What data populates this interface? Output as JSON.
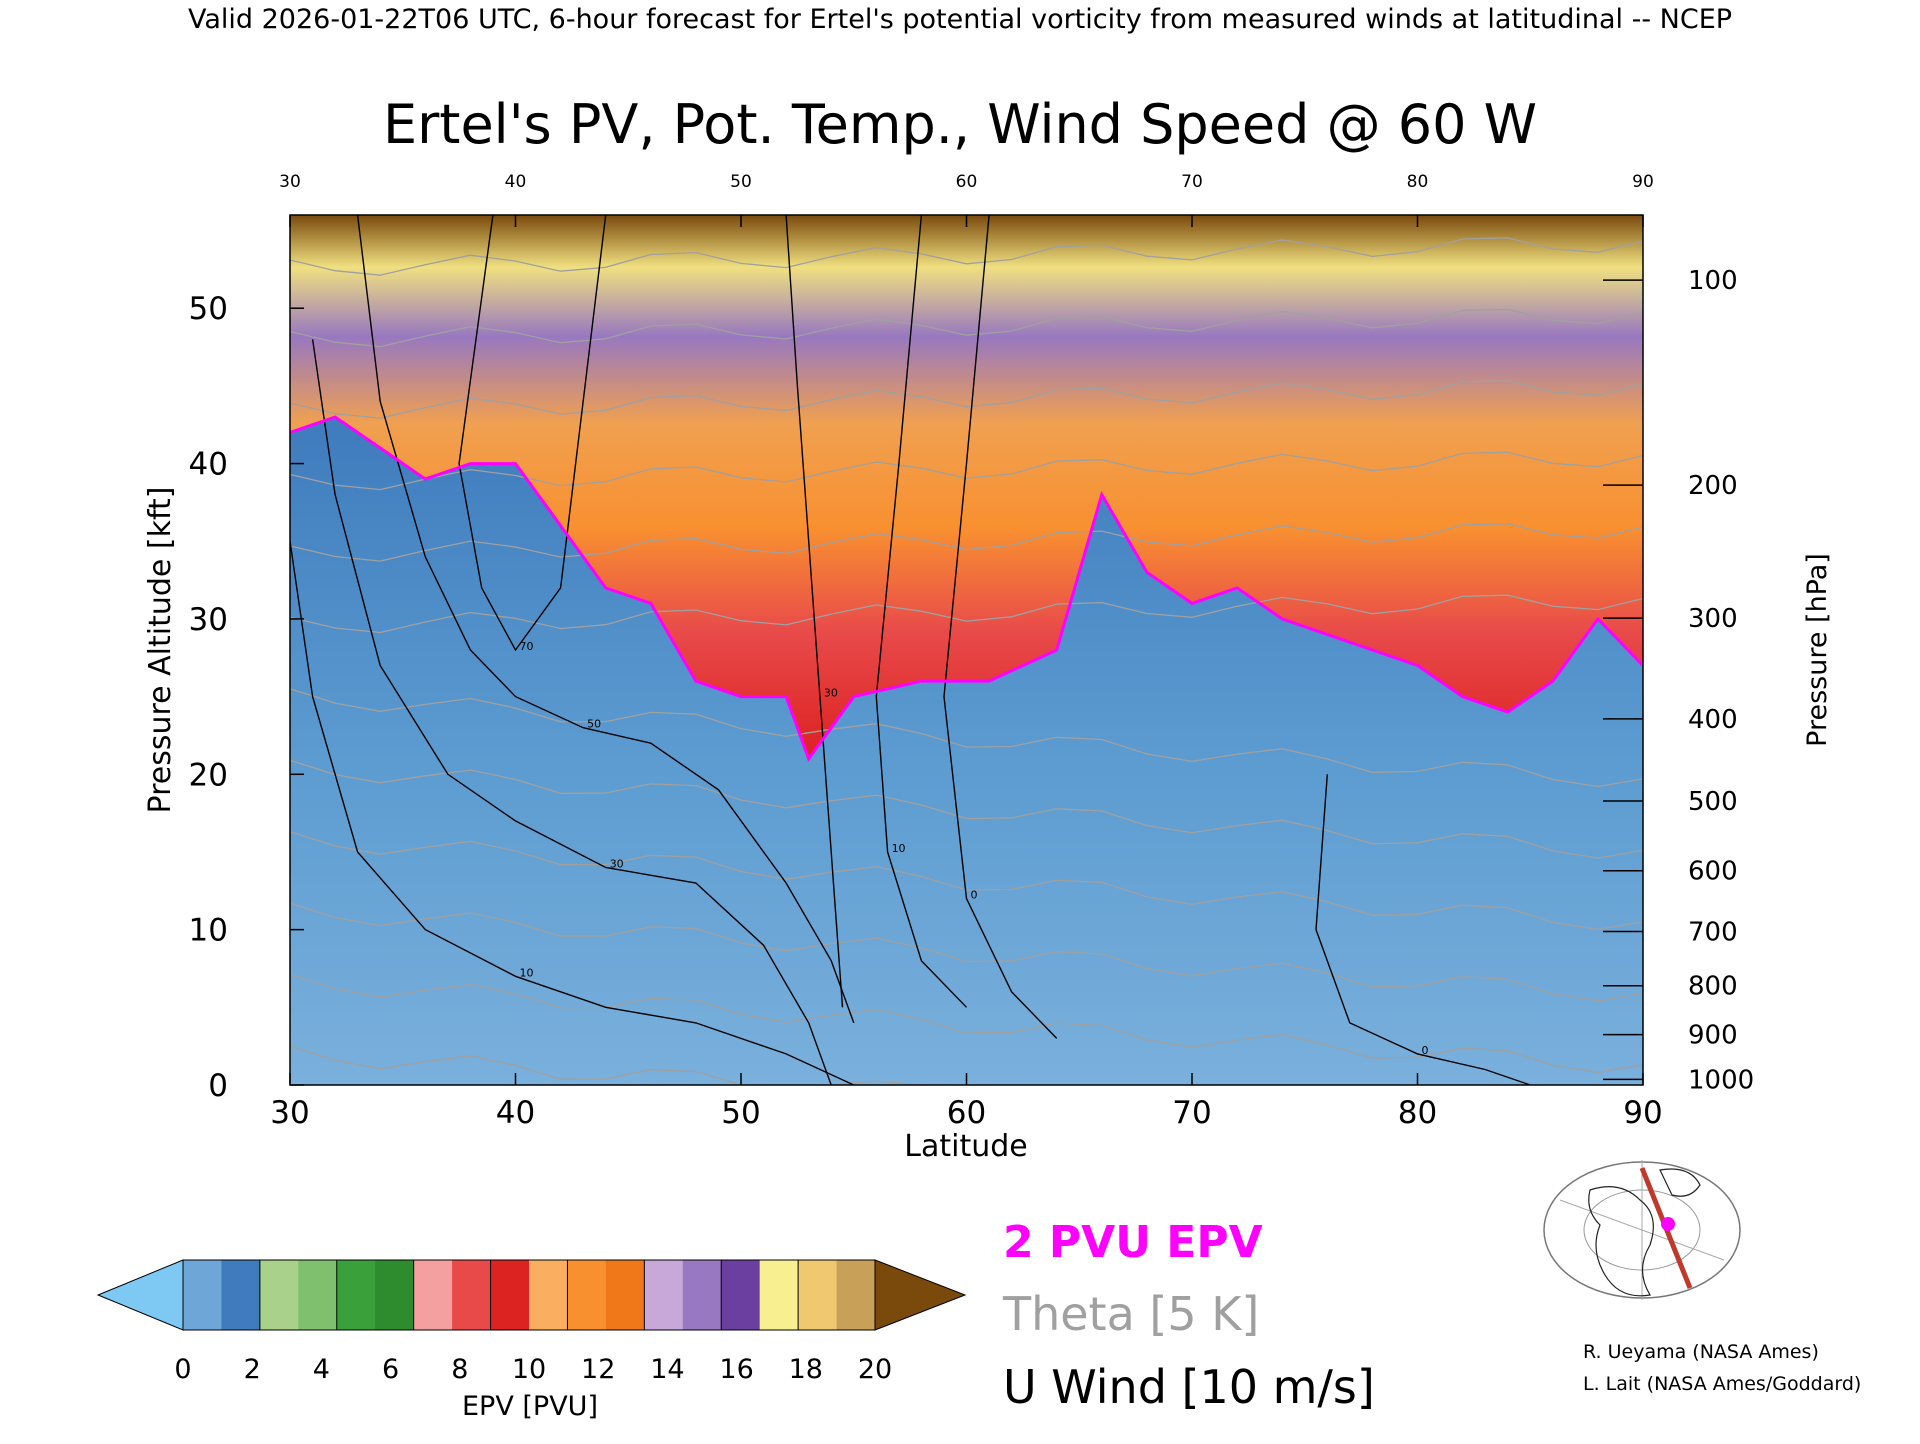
{
  "header": {
    "valid_line": "Valid 2026-01-22T06 UTC, 6-hour forecast for Ertel's potential vorticity from measured winds at latitudinal -- NCEP"
  },
  "chart_data": {
    "type": "heatmap",
    "title": "Ertel's PV, Pot. Temp., Wind Speed @ 60 W",
    "xlabel": "Latitude",
    "ylabel": "Pressure Altitude [kft]",
    "y2label": "Pressure [hPa]",
    "xlim": [
      30,
      90
    ],
    "ylim": [
      0,
      56
    ],
    "x_ticks": [
      30,
      40,
      50,
      60,
      70,
      80,
      90
    ],
    "x_tick_labels": [
      "30",
      "40",
      "50",
      "60",
      "70",
      "80",
      "90"
    ],
    "top_tick_labels": [
      "30",
      "40",
      "50",
      "60",
      "70",
      "80",
      "90"
    ],
    "y_ticks": [
      0,
      10,
      20,
      30,
      40,
      50
    ],
    "y_tick_labels": [
      "0",
      "10",
      "20",
      "30",
      "40",
      "50"
    ],
    "pressure_ticks": [
      {
        "hpa": 100,
        "label": "100"
      },
      {
        "hpa": 200,
        "label": "200"
      },
      {
        "hpa": 300,
        "label": "300"
      },
      {
        "hpa": 400,
        "label": "400"
      },
      {
        "hpa": 500,
        "label": "500"
      },
      {
        "hpa": 600,
        "label": "600"
      },
      {
        "hpa": 700,
        "label": "700"
      },
      {
        "hpa": 800,
        "label": "800"
      },
      {
        "hpa": 900,
        "label": "900"
      },
      {
        "hpa": 1000,
        "label": "1000"
      }
    ],
    "tropopause_2pvu_kft": [
      {
        "lat": 30,
        "alt": 42
      },
      {
        "lat": 32,
        "alt": 43
      },
      {
        "lat": 34,
        "alt": 41
      },
      {
        "lat": 36,
        "alt": 39
      },
      {
        "lat": 38,
        "alt": 40
      },
      {
        "lat": 40,
        "alt": 40
      },
      {
        "lat": 42,
        "alt": 36
      },
      {
        "lat": 44,
        "alt": 32
      },
      {
        "lat": 46,
        "alt": 31
      },
      {
        "lat": 48,
        "alt": 26
      },
      {
        "lat": 50,
        "alt": 25
      },
      {
        "lat": 52,
        "alt": 25
      },
      {
        "lat": 53,
        "alt": 21
      },
      {
        "lat": 55,
        "alt": 25
      },
      {
        "lat": 58,
        "alt": 26
      },
      {
        "lat": 61,
        "alt": 26
      },
      {
        "lat": 64,
        "alt": 28
      },
      {
        "lat": 66,
        "alt": 38
      },
      {
        "lat": 68,
        "alt": 33
      },
      {
        "lat": 70,
        "alt": 31
      },
      {
        "lat": 72,
        "alt": 32
      },
      {
        "lat": 74,
        "alt": 30
      },
      {
        "lat": 76,
        "alt": 29
      },
      {
        "lat": 78,
        "alt": 28
      },
      {
        "lat": 80,
        "alt": 27
      },
      {
        "lat": 82,
        "alt": 25
      },
      {
        "lat": 84,
        "alt": 24
      },
      {
        "lat": 86,
        "alt": 26
      },
      {
        "lat": 88,
        "alt": 30
      },
      {
        "lat": 90,
        "alt": 27
      }
    ],
    "pv_band_levels_pvu": [
      2,
      4,
      6,
      8,
      10,
      12,
      14,
      16,
      18,
      20
    ],
    "wind_contours": [
      {
        "label": "70",
        "points": [
          [
            39,
            56
          ],
          [
            37.5,
            40
          ],
          [
            38.5,
            32
          ],
          [
            40,
            28
          ],
          [
            42,
            32
          ],
          [
            44,
            56
          ]
        ]
      },
      {
        "label": "50",
        "points": [
          [
            33,
            56
          ],
          [
            34,
            44
          ],
          [
            36,
            34
          ],
          [
            38,
            28
          ],
          [
            40,
            25
          ],
          [
            43,
            23
          ],
          [
            46,
            22
          ],
          [
            49,
            19
          ],
          [
            52,
            13
          ],
          [
            54,
            8
          ],
          [
            55,
            4
          ]
        ]
      },
      {
        "label": "30",
        "points": [
          [
            31,
            48
          ],
          [
            32,
            38
          ],
          [
            34,
            27
          ],
          [
            37,
            20
          ],
          [
            40,
            17
          ],
          [
            44,
            14
          ],
          [
            48,
            13
          ],
          [
            51,
            9
          ],
          [
            53,
            4
          ],
          [
            54,
            0
          ]
        ]
      },
      {
        "label": "10",
        "points": [
          [
            30,
            35
          ],
          [
            31,
            25
          ],
          [
            33,
            15
          ],
          [
            36,
            10
          ],
          [
            40,
            7
          ],
          [
            44,
            5
          ],
          [
            48,
            4
          ],
          [
            52,
            2
          ],
          [
            55,
            0
          ]
        ]
      },
      {
        "label": "30",
        "points": [
          [
            52,
            56
          ],
          [
            52.5,
            45
          ],
          [
            53,
            35
          ],
          [
            53.5,
            25
          ],
          [
            54,
            15
          ],
          [
            54.5,
            5
          ]
        ]
      },
      {
        "label": "10",
        "points": [
          [
            58,
            56
          ],
          [
            57,
            40
          ],
          [
            56,
            25
          ],
          [
            56.5,
            15
          ],
          [
            58,
            8
          ],
          [
            60,
            5
          ]
        ]
      },
      {
        "label": "0",
        "points": [
          [
            61,
            56
          ],
          [
            60,
            40
          ],
          [
            59,
            25
          ],
          [
            60,
            12
          ],
          [
            62,
            6
          ],
          [
            64,
            3
          ]
        ]
      },
      {
        "label": "0",
        "points": [
          [
            76,
            20
          ],
          [
            75.5,
            10
          ],
          [
            77,
            4
          ],
          [
            80,
            2
          ],
          [
            83,
            1
          ],
          [
            85,
            0
          ]
        ]
      }
    ],
    "theta_levels_k": [
      290,
      300,
      310,
      320,
      330,
      340,
      350,
      360,
      370,
      380,
      390,
      400
    ],
    "legend": [
      {
        "label": "2 PVU EPV",
        "color": "#ff00ff"
      },
      {
        "label": "Theta [5 K]",
        "color": "#a0a0a0"
      },
      {
        "label": "U Wind [10 m/s]",
        "color": "#000000"
      }
    ],
    "colorbar": {
      "label": "EPV [PVU]",
      "tick_labels": [
        "0",
        "2",
        "4",
        "6",
        "8",
        "10",
        "12",
        "14",
        "16",
        "18",
        "20"
      ],
      "low_color": "#7ec8f4",
      "high_color": "#7a4a0c",
      "colors": [
        "#6fa6d8",
        "#3f7bbd",
        "#a9d18a",
        "#7fc06e",
        "#3aa03a",
        "#2e8b2e",
        "#f4a0a0",
        "#e84a4a",
        "#dd2222",
        "#f8b060",
        "#f89030",
        "#f07818",
        "#c8a8d8",
        "#9878c0",
        "#6a3fa0",
        "#f8f090",
        "#f0c870",
        "#c8a058"
      ]
    }
  },
  "credits": {
    "line1": "R. Ueyama (NASA Ames)",
    "line2": "L. Lait (NASA Ames/Goddard)"
  },
  "colors": {
    "tropopause": "#ff00ff",
    "theta": "#a0a0a0",
    "wind": "#000000",
    "troposphere": "#5b9bd0"
  }
}
